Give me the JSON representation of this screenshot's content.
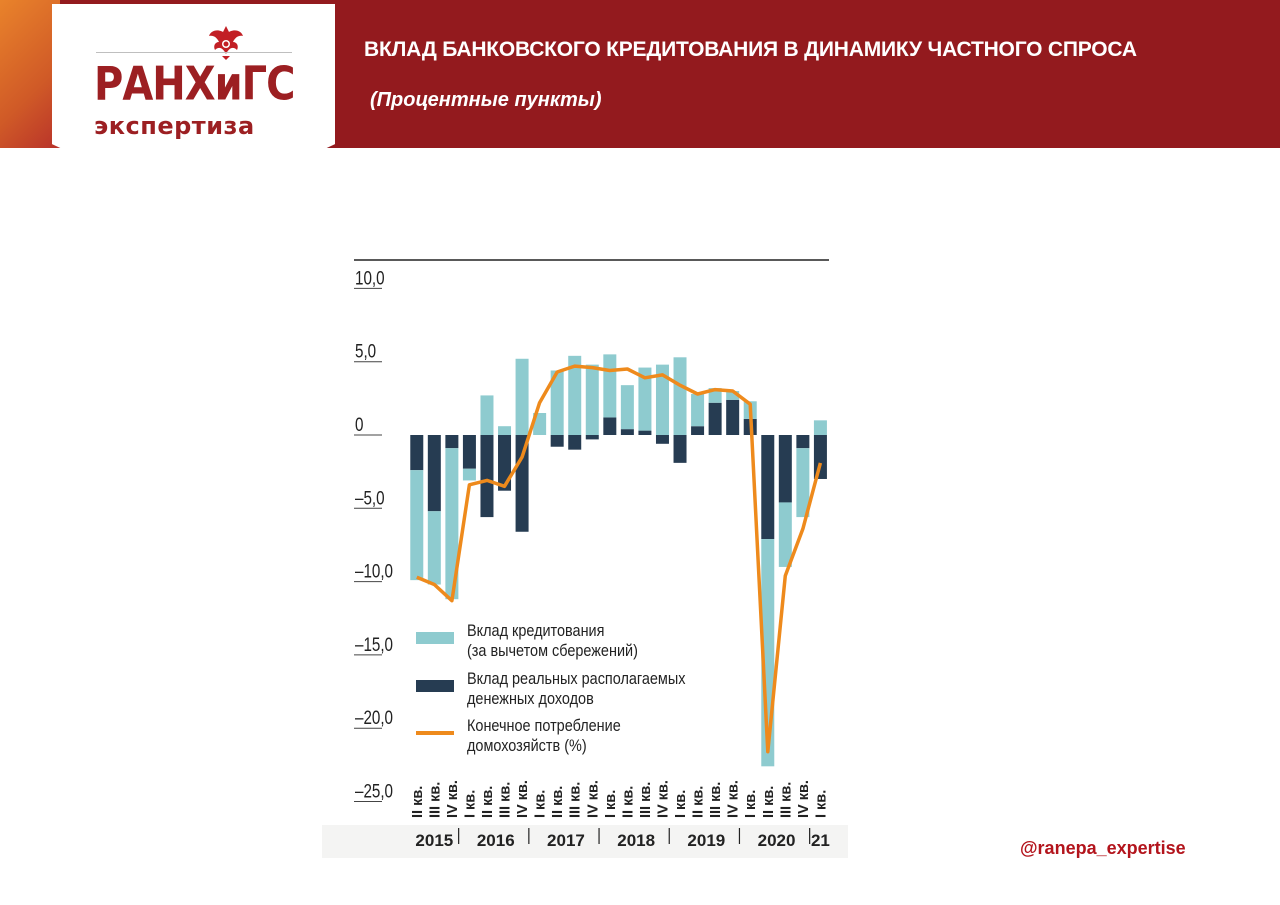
{
  "header": {
    "title": "ВКЛАД БАНКОВСКОГО КРЕДИТОВАНИЯ В ДИНАМИКУ ЧАСТНОГО СПРОСА",
    "subtitle": "(Процентные пункты)"
  },
  "logo": {
    "main_text": "РАНХиГС",
    "sub_text": "экспертиза"
  },
  "footer": {
    "handle": "@ranepa_expertise"
  },
  "colors": {
    "banner": "#931a1e",
    "credit": "#8ecbcf",
    "income": "#263c52",
    "consumption": "#ee8a1c",
    "handle": "#b3141c"
  },
  "chart_data": {
    "type": "bar",
    "stacked": true,
    "ylim": [
      -25,
      10
    ],
    "yticks": [
      10,
      5,
      0,
      -5,
      -10,
      -15,
      -20,
      -25
    ],
    "ytick_labels": [
      "10,0",
      "5,0",
      "0",
      "–5,0",
      "–10,0",
      "–15,0",
      "–20,0",
      "–25,0"
    ],
    "categories": [
      "II кв.",
      "III кв.",
      "IV кв.",
      "I кв.",
      "II кв.",
      "III кв.",
      "IV кв.",
      "I кв.",
      "II кв.",
      "III кв.",
      "IV кв.",
      "I кв.",
      "II кв.",
      "III кв.",
      "IV кв.",
      "I кв.",
      "II кв.",
      "III кв.",
      "IV кв.",
      "I кв.",
      "II кв.",
      "III кв.",
      "IV кв.",
      "I кв."
    ],
    "year_groups": [
      {
        "label": "2015",
        "count": 3
      },
      {
        "label": "2016",
        "count": 4
      },
      {
        "label": "2017",
        "count": 4
      },
      {
        "label": "2018",
        "count": 4
      },
      {
        "label": "2019",
        "count": 4
      },
      {
        "label": "2020",
        "count": 4
      },
      {
        "label": "21",
        "count": 1
      }
    ],
    "series": [
      {
        "name": "Вклад кредитования (за вычетом сбережений)",
        "type": "bar",
        "values": [
          -7.5,
          -5.0,
          -10.3,
          -0.8,
          2.7,
          0.6,
          5.2,
          1.5,
          4.4,
          5.4,
          4.8,
          4.3,
          3.0,
          4.3,
          4.8,
          5.3,
          2.2,
          1.0,
          0.6,
          1.2,
          -15.5,
          -4.4,
          -4.7,
          1.0
        ]
      },
      {
        "name": "Вклад реальных располагаемых денежных доходов",
        "type": "bar",
        "values": [
          -2.4,
          -5.2,
          -0.9,
          -2.3,
          -5.6,
          -3.8,
          -6.6,
          0.0,
          -0.8,
          -1.0,
          -0.3,
          1.2,
          0.4,
          0.3,
          -0.6,
          -1.9,
          0.6,
          2.2,
          2.4,
          1.1,
          -7.1,
          -4.6,
          -0.9,
          -3.0
        ]
      },
      {
        "name": "Конечное потребление домохозяйств (%)",
        "type": "line",
        "values": [
          -9.7,
          -10.2,
          -11.3,
          -3.4,
          -3.1,
          -3.5,
          -1.5,
          2.2,
          4.3,
          4.7,
          4.6,
          4.4,
          4.5,
          3.9,
          4.1,
          3.4,
          2.8,
          3.1,
          3.0,
          2.1,
          -21.6,
          -9.6,
          -6.4,
          -1.9
        ]
      }
    ],
    "legend_position": "bottom-left",
    "grid": false
  }
}
